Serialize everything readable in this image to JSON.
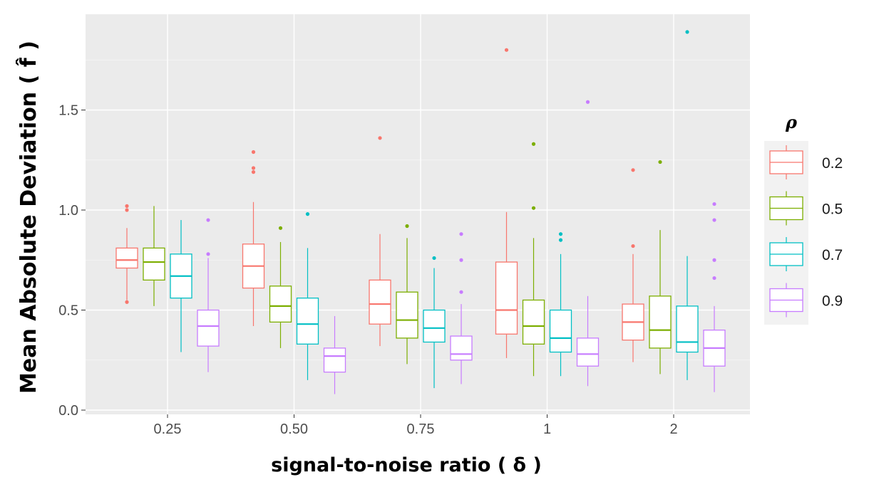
{
  "chart_data": {
    "type": "boxplot",
    "xlabel": "signal-to-noise ratio ( δ )",
    "ylabel": "Mean Absolute Deviation ( f̂ )",
    "categories": [
      "0.25",
      "0.50",
      "0.75",
      "1",
      "2"
    ],
    "ylim": [
      0,
      1.95
    ],
    "yticks": [
      "0.0",
      "0.5",
      "1.0",
      "1.5"
    ],
    "ytick_values": [
      0,
      0.5,
      1.0,
      1.5
    ],
    "grid": true,
    "legend": {
      "title": "ρ",
      "position": "right"
    },
    "series": [
      {
        "name": "0.2",
        "color": "#F8766D",
        "boxes": [
          {
            "min": 0.55,
            "q1": 0.71,
            "median": 0.75,
            "q3": 0.81,
            "max": 0.91,
            "outliers": [
              1.02,
              1.0,
              0.54
            ]
          },
          {
            "min": 0.42,
            "q1": 0.61,
            "median": 0.72,
            "q3": 0.83,
            "max": 1.04,
            "outliers": [
              1.29,
              1.21,
              1.19
            ]
          },
          {
            "min": 0.32,
            "q1": 0.43,
            "median": 0.53,
            "q3": 0.65,
            "max": 0.88,
            "outliers": [
              1.36
            ]
          },
          {
            "min": 0.26,
            "q1": 0.38,
            "median": 0.5,
            "q3": 0.74,
            "max": 0.99,
            "outliers": [
              1.8
            ]
          },
          {
            "min": 0.24,
            "q1": 0.35,
            "median": 0.44,
            "q3": 0.53,
            "max": 0.78,
            "outliers": [
              1.2,
              0.82
            ]
          }
        ]
      },
      {
        "name": "0.5",
        "color": "#7CAE00",
        "boxes": [
          {
            "min": 0.52,
            "q1": 0.65,
            "median": 0.74,
            "q3": 0.81,
            "max": 1.02,
            "outliers": []
          },
          {
            "min": 0.31,
            "q1": 0.44,
            "median": 0.52,
            "q3": 0.62,
            "max": 0.84,
            "outliers": [
              0.91
            ]
          },
          {
            "min": 0.23,
            "q1": 0.36,
            "median": 0.45,
            "q3": 0.59,
            "max": 0.86,
            "outliers": [
              0.92
            ]
          },
          {
            "min": 0.17,
            "q1": 0.33,
            "median": 0.42,
            "q3": 0.55,
            "max": 0.86,
            "outliers": [
              1.33,
              1.01
            ]
          },
          {
            "min": 0.18,
            "q1": 0.31,
            "median": 0.4,
            "q3": 0.57,
            "max": 0.9,
            "outliers": [
              1.24
            ]
          }
        ]
      },
      {
        "name": "0.7",
        "color": "#00BFC4",
        "boxes": [
          {
            "min": 0.29,
            "q1": 0.56,
            "median": 0.67,
            "q3": 0.78,
            "max": 0.95,
            "outliers": []
          },
          {
            "min": 0.15,
            "q1": 0.33,
            "median": 0.43,
            "q3": 0.56,
            "max": 0.81,
            "outliers": [
              0.98
            ]
          },
          {
            "min": 0.11,
            "q1": 0.34,
            "median": 0.41,
            "q3": 0.5,
            "max": 0.71,
            "outliers": [
              0.76
            ]
          },
          {
            "min": 0.17,
            "q1": 0.29,
            "median": 0.36,
            "q3": 0.5,
            "max": 0.78,
            "outliers": [
              0.88,
              0.85
            ]
          },
          {
            "min": 0.15,
            "q1": 0.29,
            "median": 0.34,
            "q3": 0.52,
            "max": 0.77,
            "outliers": [
              1.89
            ]
          }
        ]
      },
      {
        "name": "0.9",
        "color": "#C77CFF",
        "boxes": [
          {
            "min": 0.19,
            "q1": 0.32,
            "median": 0.42,
            "q3": 0.5,
            "max": 0.76,
            "outliers": [
              0.95,
              0.78
            ]
          },
          {
            "min": 0.08,
            "q1": 0.19,
            "median": 0.27,
            "q3": 0.31,
            "max": 0.47,
            "outliers": []
          },
          {
            "min": 0.13,
            "q1": 0.25,
            "median": 0.28,
            "q3": 0.37,
            "max": 0.53,
            "outliers": [
              0.88,
              0.75,
              0.59
            ]
          },
          {
            "min": 0.12,
            "q1": 0.22,
            "median": 0.28,
            "q3": 0.36,
            "max": 0.57,
            "outliers": [
              1.54
            ]
          },
          {
            "min": 0.09,
            "q1": 0.22,
            "median": 0.31,
            "q3": 0.4,
            "max": 0.52,
            "outliers": [
              1.03,
              0.95,
              0.75,
              0.66
            ]
          }
        ]
      }
    ]
  }
}
